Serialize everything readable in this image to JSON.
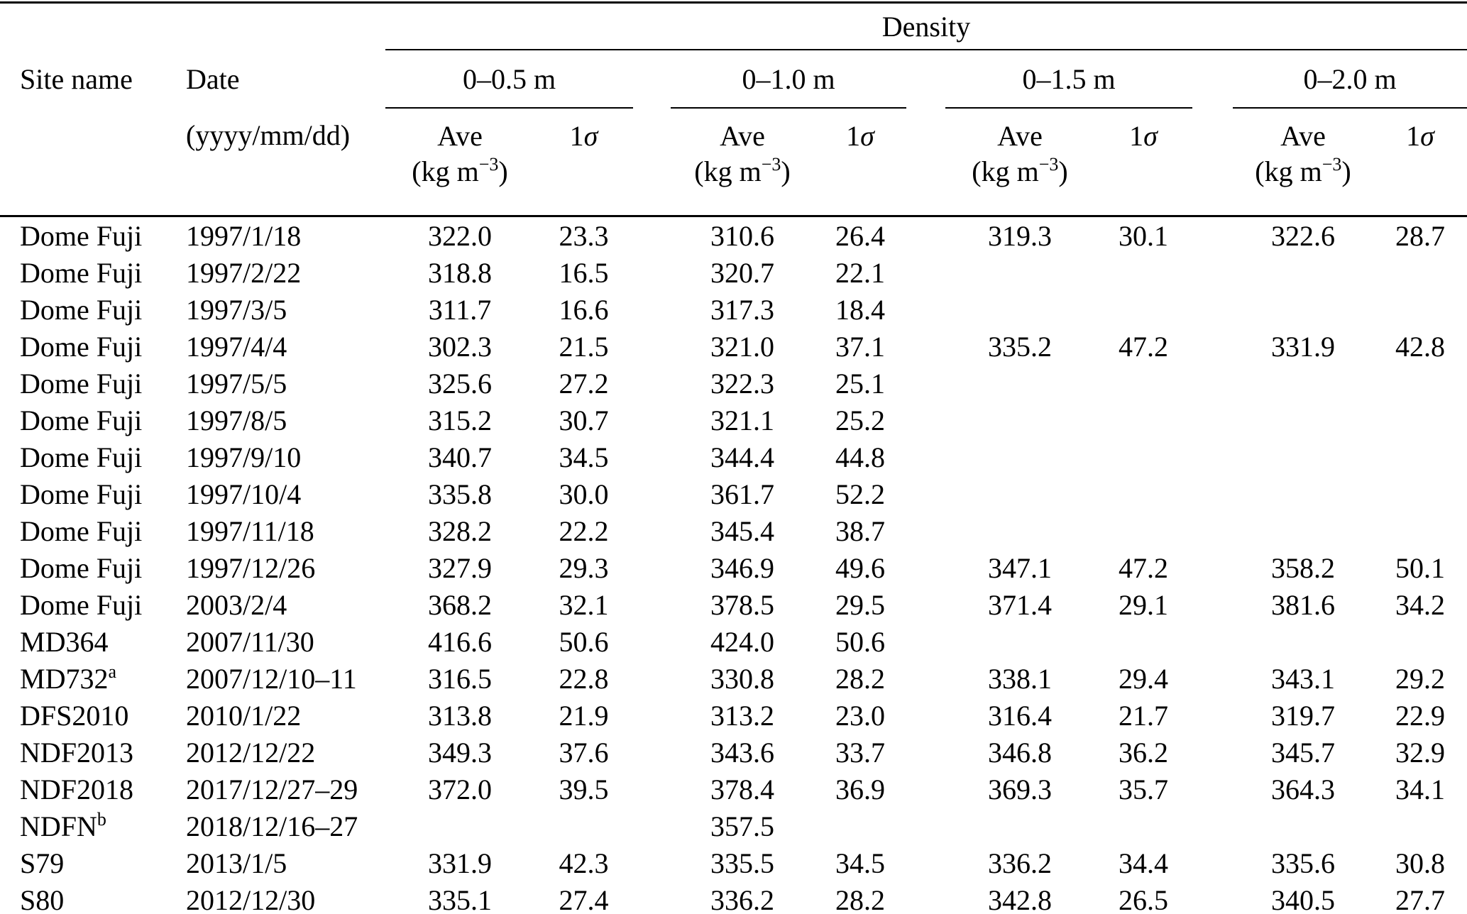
{
  "page": {
    "background_color": "#ffffff",
    "text_color": "#000000"
  },
  "table": {
    "density_header": "Density",
    "site_header": "Site name",
    "date_header": "Date",
    "date_format": "(yyyy/mm/dd)",
    "groups": [
      "0–0.5 m",
      "0–1.0 m",
      "0–1.5 m",
      "0–2.0 m"
    ],
    "sub": {
      "ave": "Ave",
      "one": "1",
      "sigma": "σ",
      "unit_open": "(kg m",
      "unit_exp": "−3",
      "unit_close": ")"
    },
    "rows": [
      {
        "site": "Dome Fuji",
        "sup": "",
        "date": "1997/1/18",
        "values": [
          "322.0",
          "23.3",
          "310.6",
          "26.4",
          "319.3",
          "30.1",
          "322.6",
          "28.7"
        ]
      },
      {
        "site": "Dome Fuji",
        "sup": "",
        "date": "1997/2/22",
        "values": [
          "318.8",
          "16.5",
          "320.7",
          "22.1",
          "",
          "",
          "",
          ""
        ]
      },
      {
        "site": "Dome Fuji",
        "sup": "",
        "date": "1997/3/5",
        "values": [
          "311.7",
          "16.6",
          "317.3",
          "18.4",
          "",
          "",
          "",
          ""
        ]
      },
      {
        "site": "Dome Fuji",
        "sup": "",
        "date": "1997/4/4",
        "values": [
          "302.3",
          "21.5",
          "321.0",
          "37.1",
          "335.2",
          "47.2",
          "331.9",
          "42.8"
        ]
      },
      {
        "site": "Dome Fuji",
        "sup": "",
        "date": "1997/5/5",
        "values": [
          "325.6",
          "27.2",
          "322.3",
          "25.1",
          "",
          "",
          "",
          ""
        ]
      },
      {
        "site": "Dome Fuji",
        "sup": "",
        "date": "1997/8/5",
        "values": [
          "315.2",
          "30.7",
          "321.1",
          "25.2",
          "",
          "",
          "",
          ""
        ]
      },
      {
        "site": "Dome Fuji",
        "sup": "",
        "date": "1997/9/10",
        "values": [
          "340.7",
          "34.5",
          "344.4",
          "44.8",
          "",
          "",
          "",
          ""
        ]
      },
      {
        "site": "Dome Fuji",
        "sup": "",
        "date": "1997/10/4",
        "values": [
          "335.8",
          "30.0",
          "361.7",
          "52.2",
          "",
          "",
          "",
          ""
        ]
      },
      {
        "site": "Dome Fuji",
        "sup": "",
        "date": "1997/11/18",
        "values": [
          "328.2",
          "22.2",
          "345.4",
          "38.7",
          "",
          "",
          "",
          ""
        ]
      },
      {
        "site": "Dome Fuji",
        "sup": "",
        "date": "1997/12/26",
        "values": [
          "327.9",
          "29.3",
          "346.9",
          "49.6",
          "347.1",
          "47.2",
          "358.2",
          "50.1"
        ]
      },
      {
        "site": "Dome Fuji",
        "sup": "",
        "date": "2003/2/4",
        "values": [
          "368.2",
          "32.1",
          "378.5",
          "29.5",
          "371.4",
          "29.1",
          "381.6",
          "34.2"
        ]
      },
      {
        "site": "MD364",
        "sup": "",
        "date": "2007/11/30",
        "values": [
          "416.6",
          "50.6",
          "424.0",
          "50.6",
          "",
          "",
          "",
          ""
        ]
      },
      {
        "site": "MD732",
        "sup": "a",
        "date": "2007/12/10–11",
        "values": [
          "316.5",
          "22.8",
          "330.8",
          "28.2",
          "338.1",
          "29.4",
          "343.1",
          "29.2"
        ]
      },
      {
        "site": "DFS2010",
        "sup": "",
        "date": "2010/1/22",
        "values": [
          "313.8",
          "21.9",
          "313.2",
          "23.0",
          "316.4",
          "21.7",
          "319.7",
          "22.9"
        ]
      },
      {
        "site": "NDF2013",
        "sup": "",
        "date": "2012/12/22",
        "values": [
          "349.3",
          "37.6",
          "343.6",
          "33.7",
          "346.8",
          "36.2",
          "345.7",
          "32.9"
        ]
      },
      {
        "site": "NDF2018",
        "sup": "",
        "date": "2017/12/27–29",
        "values": [
          "372.0",
          "39.5",
          "378.4",
          "36.9",
          "369.3",
          "35.7",
          "364.3",
          "34.1"
        ]
      },
      {
        "site": "NDFN",
        "sup": "b",
        "date": "2018/12/16–27",
        "values": [
          "",
          "",
          "357.5",
          "",
          "",
          "",
          "",
          ""
        ]
      },
      {
        "site": "S79",
        "sup": "",
        "date": "2013/1/5",
        "values": [
          "331.9",
          "42.3",
          "335.5",
          "34.5",
          "336.2",
          "34.4",
          "335.6",
          "30.8"
        ]
      },
      {
        "site": "S80",
        "sup": "",
        "date": "2012/12/30",
        "values": [
          "335.1",
          "27.4",
          "336.2",
          "28.2",
          "342.8",
          "26.5",
          "340.5",
          "27.7"
        ]
      }
    ]
  }
}
